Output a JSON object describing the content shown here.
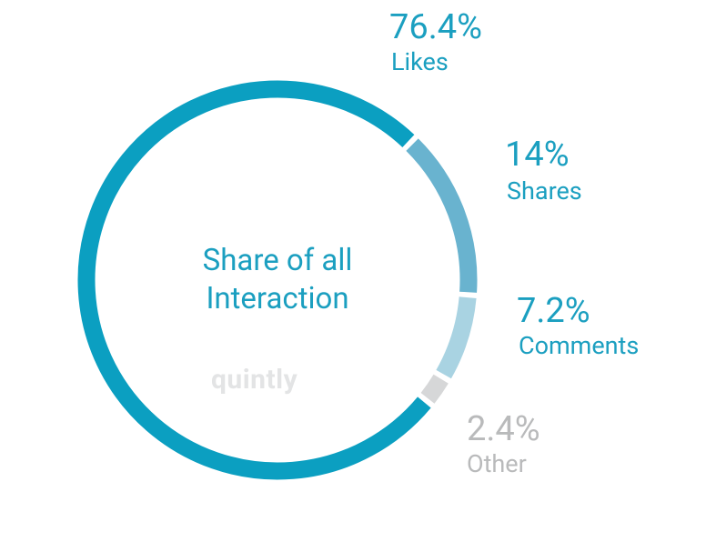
{
  "chart_data": {
    "type": "pie",
    "title": "Share of all Interaction",
    "watermark": "quintly",
    "categories": [
      "Likes",
      "Shares",
      "Comments",
      "Other"
    ],
    "values": [
      76.4,
      14,
      7.2,
      2.4
    ],
    "value_labels": [
      "76.4%",
      "14%",
      "7.2%",
      "2.4%"
    ],
    "colors": [
      "#0b9fc1",
      "#69b3cf",
      "#a9d3e2",
      "#d6d7d8"
    ],
    "label_colors": [
      "#1b9fc0",
      "#1b9fc0",
      "#1b9fc0",
      "#b9babb"
    ]
  }
}
